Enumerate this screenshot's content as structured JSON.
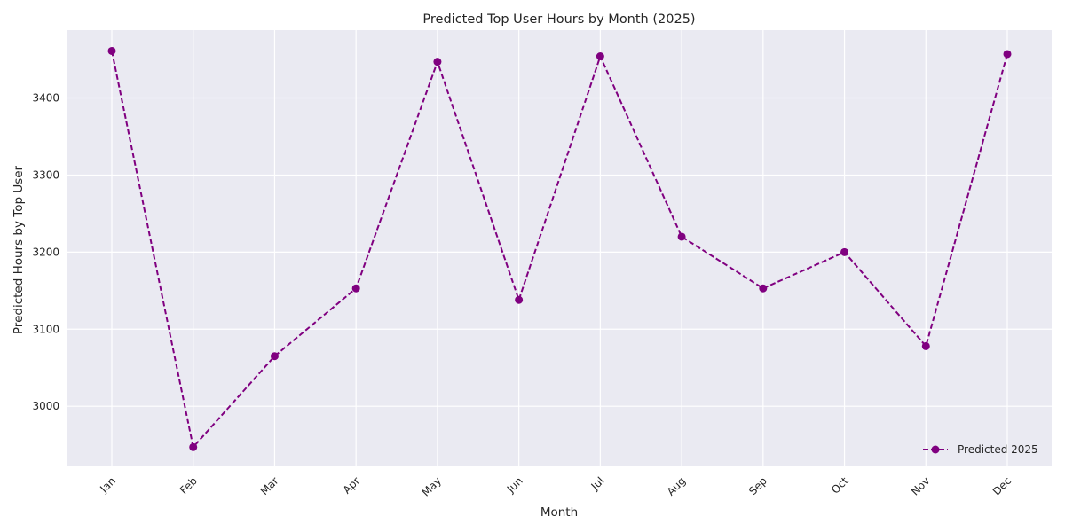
{
  "chart_data": {
    "type": "line",
    "title": "Predicted Top User Hours by Month (2025)",
    "xlabel": "Month",
    "ylabel": "Predicted Hours by Top User",
    "categories": [
      "Jan",
      "Feb",
      "Mar",
      "Apr",
      "May",
      "Jun",
      "Jul",
      "Aug",
      "Sep",
      "Oct",
      "Nov",
      "Dec"
    ],
    "series": [
      {
        "name": "Predicted 2025",
        "values": [
          3461,
          2947,
          3065,
          3153,
          3447,
          3138,
          3454,
          3220,
          3153,
          3200,
          3078,
          3457
        ],
        "color": "#800080",
        "line_style": "dashed",
        "marker": "circle"
      }
    ],
    "ylim": [
      2922,
      3488
    ],
    "yticks": [
      3000,
      3100,
      3200,
      3300,
      3400
    ],
    "grid": true,
    "legend": "lower-right",
    "background": "#eaeaf2",
    "grid_color": "#ffffff"
  }
}
